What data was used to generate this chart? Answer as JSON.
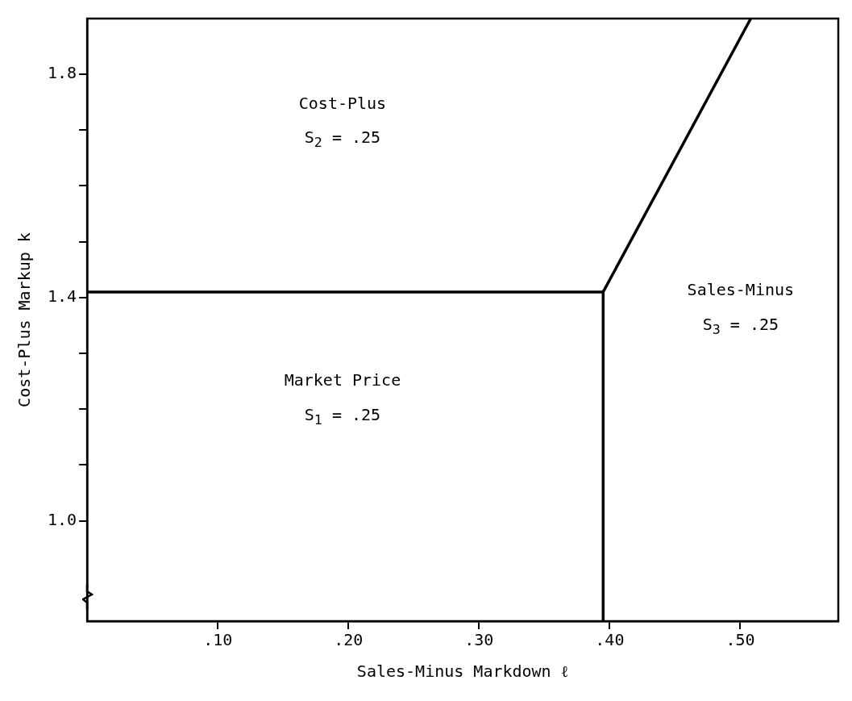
{
  "chart_data": {
    "type": "line",
    "xlabel": "Sales-Minus Markdown ℓ",
    "ylabel": "Cost-Plus Markup k",
    "series": [
      {
        "color": "#000000",
        "x": [
          0,
          0.395
        ],
        "values": [
          1.41,
          1.41
        ]
      },
      {
        "color": "#000000",
        "x": [
          0.395,
          0.395
        ],
        "values": [
          0.82,
          1.41
        ]
      },
      {
        "color": "#000000",
        "x": [
          0.395,
          0.508
        ],
        "values": [
          1.41,
          1.9
        ]
      }
    ],
    "xlim": [
      0,
      0.575
    ],
    "ylim": [
      0.82,
      1.9
    ],
    "xticks": [
      {
        "value": 0.1,
        "label": ".10"
      },
      {
        "value": 0.2,
        "label": ".20"
      },
      {
        "value": 0.3,
        "label": ".30"
      },
      {
        "value": 0.4,
        "label": ".40"
      },
      {
        "value": 0.5,
        "label": ".50"
      }
    ],
    "yticks": [
      {
        "value": 1.0,
        "label": "1.0"
      },
      {
        "value": 1.1,
        "label": null
      },
      {
        "value": 1.2,
        "label": null
      },
      {
        "value": 1.3,
        "label": null
      },
      {
        "value": 1.4,
        "label": "1.4"
      },
      {
        "value": 1.5,
        "label": null
      },
      {
        "value": 1.6,
        "label": null
      },
      {
        "value": 1.7,
        "label": null
      },
      {
        "value": 1.8,
        "label": "1.8"
      }
    ],
    "annotations": [
      "Cost-Plus",
      "S$_{2}$ = .25",
      "Market Price",
      "S$_{1}$ = .25",
      "Sales-Minus",
      "S$_{3}$ = .25"
    ],
    "grid": false,
    "legend": false,
    "marker": "none",
    "line_style": "solid"
  }
}
